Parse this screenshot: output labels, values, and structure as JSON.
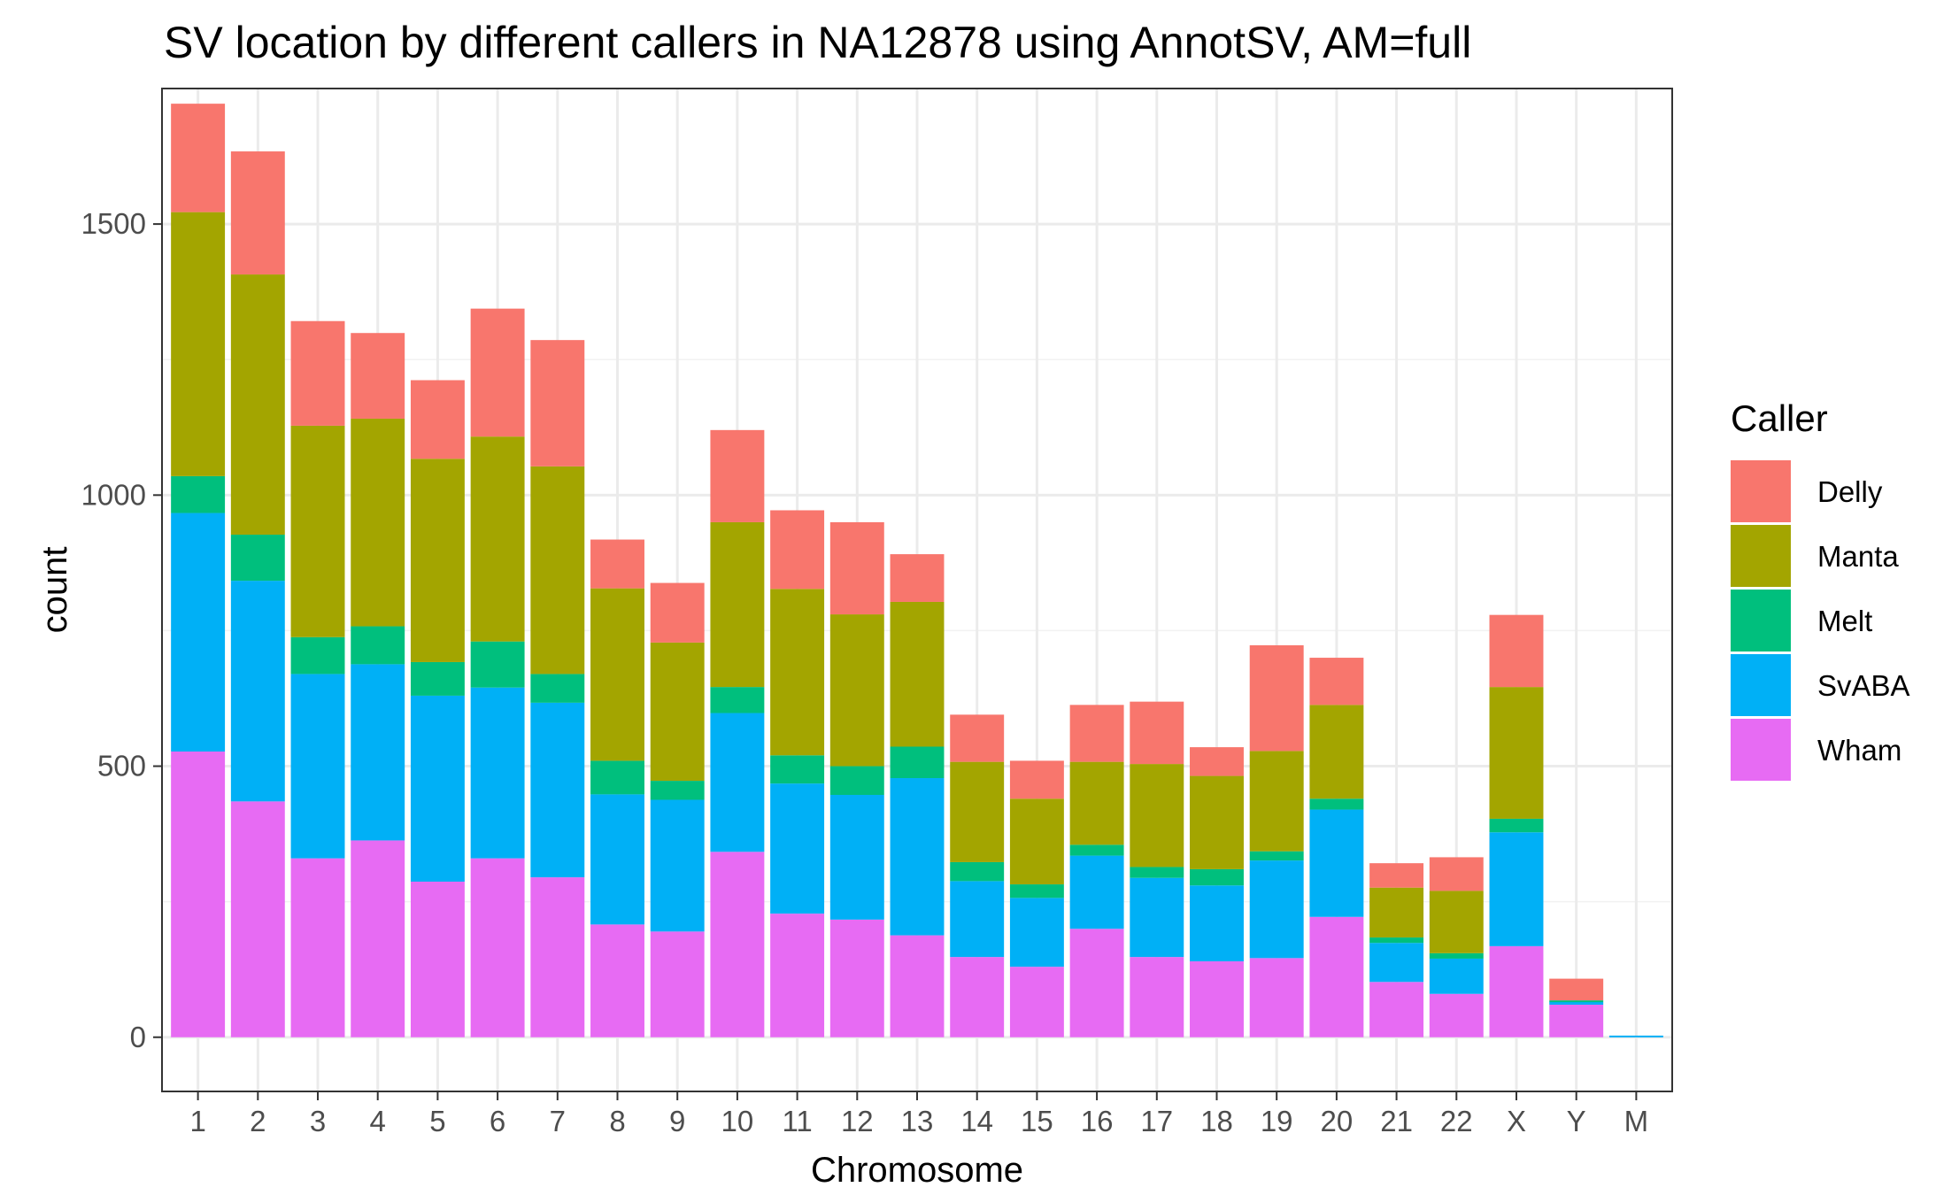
{
  "chart_data": {
    "type": "bar",
    "stacked": true,
    "title": "SV location by different callers in NA12878 using AnnotSV, AM=full",
    "xlabel": "Chromosome",
    "ylabel": "count",
    "ylim": [
      -100,
      1750
    ],
    "yticks": [
      0,
      500,
      1000,
      1500
    ],
    "grid": true,
    "legend": {
      "title": "Caller",
      "position": "right"
    },
    "categories": [
      "1",
      "2",
      "3",
      "4",
      "5",
      "6",
      "7",
      "8",
      "9",
      "10",
      "11",
      "12",
      "13",
      "14",
      "15",
      "16",
      "17",
      "18",
      "19",
      "20",
      "21",
      "22",
      "X",
      "Y",
      "M"
    ],
    "series": [
      {
        "name": "Wham",
        "color": "#E76BF3",
        "values": [
          527,
          435,
          330,
          363,
          287,
          330,
          295,
          208,
          195,
          342,
          228,
          217,
          188,
          148,
          130,
          200,
          148,
          140,
          146,
          222,
          102,
          80,
          168,
          60,
          0
        ]
      },
      {
        "name": "SvABA",
        "color": "#00B0F6",
        "values": [
          440,
          407,
          340,
          325,
          343,
          315,
          322,
          240,
          243,
          256,
          240,
          230,
          290,
          140,
          127,
          135,
          146,
          140,
          180,
          198,
          72,
          65,
          210,
          5,
          3
        ]
      },
      {
        "name": "Melt",
        "color": "#00BF7D",
        "values": [
          68,
          85,
          68,
          70,
          62,
          85,
          53,
          62,
          35,
          48,
          52,
          53,
          58,
          35,
          25,
          20,
          20,
          30,
          17,
          20,
          10,
          10,
          25,
          3,
          0
        ]
      },
      {
        "name": "Manta",
        "color": "#A3A500",
        "values": [
          487,
          480,
          390,
          383,
          375,
          378,
          383,
          318,
          255,
          304,
          307,
          280,
          267,
          185,
          158,
          153,
          190,
          172,
          185,
          173,
          92,
          115,
          243,
          0,
          0
        ]
      },
      {
        "name": "Delly",
        "color": "#F8766D",
        "values": [
          200,
          227,
          193,
          158,
          145,
          236,
          233,
          90,
          110,
          170,
          145,
          170,
          88,
          87,
          70,
          105,
          115,
          53,
          195,
          87,
          45,
          62,
          133,
          40,
          0
        ]
      }
    ]
  }
}
